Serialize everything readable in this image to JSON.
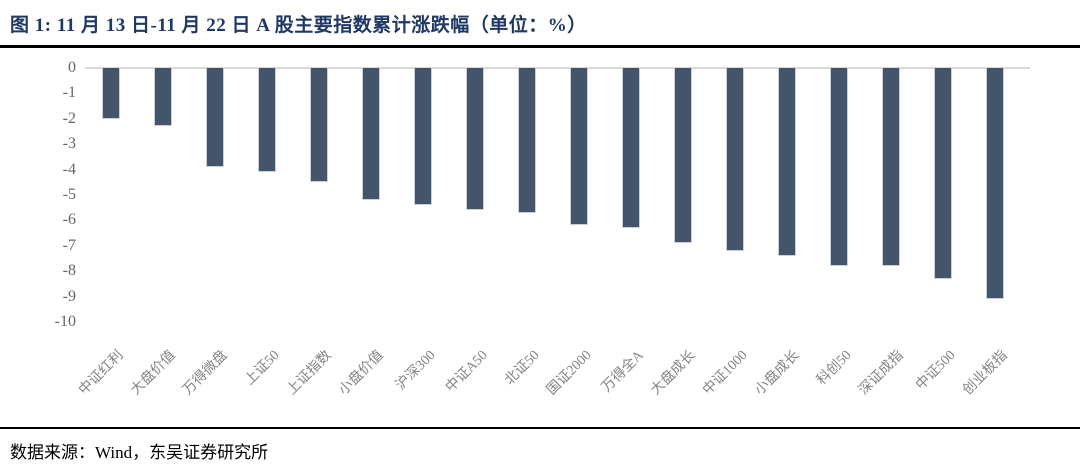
{
  "page": {
    "title": "图 1: 11 月 13 日-11 月 22 日 A 股主要指数累计涨跌幅（单位：%）",
    "source": "数据来源：Wind，东吴证券研究所"
  },
  "colors": {
    "title": "#1f3864",
    "bar": "#44546a",
    "bar_border": "#c9d0da",
    "zero_line": "#d9d9d9",
    "y_tick_label": "#666666",
    "x_tick_label": "#848484",
    "rule": "#000000",
    "background": "#ffffff"
  },
  "chart_data": {
    "type": "bar",
    "title": "11月13日-11月22日A股主要指数累计涨跌幅",
    "unit": "%",
    "categories": [
      "中证红利",
      "大盘价值",
      "万得微盘",
      "上证50",
      "上证指数",
      "小盘价值",
      "沪深300",
      "中证A50",
      "北证50",
      "国证2000",
      "万得全A",
      "大盘成长",
      "中证1000",
      "小盘成长",
      "科创50",
      "深证成指",
      "中证500",
      "创业板指"
    ],
    "values": [
      -2.0,
      -2.3,
      -3.9,
      -4.1,
      -4.5,
      -5.2,
      -5.4,
      -5.6,
      -5.7,
      -6.2,
      -6.3,
      -6.9,
      -7.2,
      -7.4,
      -7.8,
      -7.8,
      -8.3,
      -9.1
    ],
    "xlabel": "",
    "ylabel": "",
    "ylim": [
      -10,
      0
    ],
    "yticks": [
      0,
      -1,
      -2,
      -3,
      -4,
      -5,
      -6,
      -7,
      -8,
      -9,
      -10
    ],
    "grid": false,
    "legend": false
  }
}
